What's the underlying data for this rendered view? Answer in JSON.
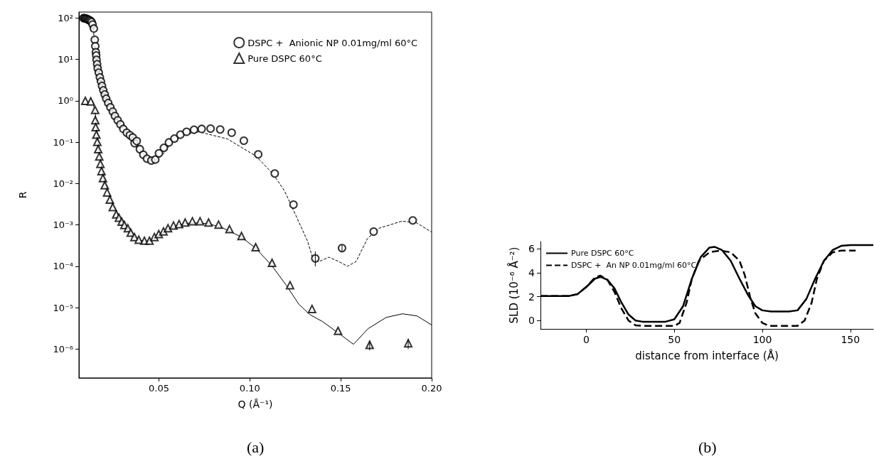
{
  "chart_data": [
    {
      "type": "scatter",
      "xlabel": "Q (Å⁻¹)",
      "ylabel": "R",
      "annotations": [
        "(a)"
      ],
      "log": "y",
      "legend": "top right",
      "grid": false,
      "xlim": [
        0.006,
        0.2
      ],
      "xticks": [
        0.05,
        {
          "value": 0.1,
          "label": "0.10"
        },
        0.15,
        {
          "value": 0.2,
          "label": "0.20"
        }
      ],
      "ylim": [
        2e-07,
        140
      ],
      "yticks": [
        {
          "value": 100,
          "label": "10²"
        },
        {
          "value": 10,
          "label": "10¹"
        },
        {
          "value": 1,
          "label": "10⁰"
        },
        {
          "value": 0.1,
          "label": "10⁻¹"
        },
        {
          "value": 0.01,
          "label": "10⁻²"
        },
        {
          "value": 0.001,
          "label": "10⁻³"
        },
        {
          "value": 0.0001,
          "label": "10⁻⁴"
        },
        {
          "value": 1e-05,
          "label": "10⁻⁵"
        },
        {
          "value": 1e-06,
          "label": "10⁻⁶"
        }
      ],
      "series": [
        {
          "name": "DSPC +  Anionic NP 0.01mg/ml 60°C",
          "color": "#000000",
          "marker": "circle",
          "x": [
            0.0085,
            0.009,
            0.0095,
            0.01,
            0.0105,
            0.011,
            0.0115,
            0.012,
            0.0125,
            0.013,
            0.0135,
            0.0142,
            0.0147,
            0.015,
            0.0153,
            0.0155,
            0.0157,
            0.016,
            0.0163,
            0.0169,
            0.0175,
            0.0181,
            0.0187,
            0.0194,
            0.0202,
            0.021,
            0.0221,
            0.0233,
            0.0246,
            0.0258,
            0.0273,
            0.0288,
            0.0304,
            0.0323,
            0.034,
            0.0356,
            0.0366,
            0.0378,
            0.0395,
            0.0414,
            0.0434,
            0.0458,
            0.048,
            0.05,
            0.0527,
            0.0555,
            0.0585,
            0.0618,
            0.0652,
            0.0693,
            0.0735,
            0.0784,
            0.0837,
            0.09,
            0.0967,
            0.1046,
            0.1137,
            0.124,
            0.136,
            0.1507,
            0.1681,
            0.1896
          ],
          "values": [
            100,
            100,
            98,
            97,
            95,
            92,
            90,
            88,
            85,
            80,
            70,
            56,
            30,
            21,
            15,
            12.5,
            9.8,
            7.7,
            6.1,
            4.8,
            3.7,
            2.95,
            2.3,
            1.8,
            1.43,
            1.13,
            0.89,
            0.7,
            0.55,
            0.43,
            0.34,
            0.27,
            0.21,
            0.17,
            0.148,
            0.13,
            0.095,
            0.107,
            0.068,
            0.05,
            0.04,
            0.036,
            0.038,
            0.054,
            0.073,
            0.099,
            0.122,
            0.152,
            0.179,
            0.2,
            0.21,
            0.213,
            0.203,
            0.17,
            0.109,
            0.051,
            0.0175,
            0.0031,
            0.000155,
            0.000275,
            0.00069,
            0.00129
          ],
          "errors": [
            null,
            null,
            null,
            null,
            null,
            null,
            null,
            null,
            null,
            null,
            null,
            null,
            null,
            null,
            null,
            null,
            null,
            null,
            null,
            null,
            null,
            null,
            null,
            null,
            null,
            null,
            null,
            null,
            null,
            null,
            null,
            null,
            null,
            null,
            null,
            null,
            null,
            null,
            null,
            null,
            null,
            null,
            null,
            null,
            null,
            null,
            null,
            null,
            null,
            null,
            null,
            null,
            null,
            null,
            null,
            null,
            null,
            null,
            [
              0.0001,
              0.00023
            ],
            [
              0.000225,
              0.000325
            ],
            null,
            null
          ]
        },
        {
          "name": "Pure DSPC 60°C",
          "color": "#000000",
          "marker": "triangle",
          "x": [
            0.0095,
            0.0125,
            0.0149,
            0.015,
            0.0152,
            0.0156,
            0.0161,
            0.0166,
            0.0172,
            0.0178,
            0.0184,
            0.0192,
            0.0202,
            0.0215,
            0.023,
            0.0246,
            0.0265,
            0.028,
            0.0295,
            0.031,
            0.0329,
            0.0345,
            0.0365,
            0.0389,
            0.042,
            0.0448,
            0.0475,
            0.0499,
            0.0525,
            0.055,
            0.058,
            0.0611,
            0.0644,
            0.0684,
            0.0726,
            0.0773,
            0.0828,
            0.0888,
            0.0954,
            0.1032,
            0.1122,
            0.1221,
            0.1342,
            0.1485,
            0.1659,
            0.1871
          ],
          "values": [
            1,
            0.97,
            0.6,
            0.34,
            0.23,
            0.152,
            0.102,
            0.068,
            0.045,
            0.03,
            0.02,
            0.0135,
            0.0091,
            0.0061,
            0.0041,
            0.0027,
            0.0018,
            0.0015,
            0.0012,
            0.001,
            0.00083,
            0.00065,
            0.00051,
            0.00044,
            0.000415,
            0.000415,
            0.00051,
            0.0006,
            0.0007,
            0.00083,
            0.00097,
            0.00105,
            0.00114,
            0.00123,
            0.00123,
            0.00114,
            0.00102,
            0.00079,
            0.00054,
            0.00029,
            0.000121,
            3.5e-05,
            9.3e-06,
            2.75e-06,
            1.26e-06,
            1.38e-06
          ],
          "errors": [
            null,
            null,
            null,
            null,
            null,
            null,
            null,
            null,
            null,
            null,
            null,
            null,
            null,
            null,
            null,
            null,
            null,
            null,
            null,
            null,
            null,
            null,
            null,
            null,
            null,
            null,
            null,
            null,
            null,
            null,
            null,
            null,
            null,
            null,
            null,
            null,
            null,
            null,
            null,
            null,
            null,
            null,
            null,
            null,
            [
              9.3e-07,
              1.6e-06
            ],
            [
              1e-06,
              1.75e-06
            ]
          ]
        },
        {
          "type": "line",
          "color": "#000000",
          "marker": "none",
          "line_style": "dashed",
          "x": [
            0.0135,
            0.015,
            0.017,
            0.02,
            0.025,
            0.03,
            0.035,
            0.04,
            0.045,
            0.048,
            0.052,
            0.056,
            0.06,
            0.065,
            0.072,
            0.0877,
            0.1034,
            0.1128,
            0.1191,
            0.1253,
            0.1318,
            0.1349,
            0.138,
            0.1435,
            0.149,
            0.1537,
            0.1584,
            0.1647,
            0.171,
            0.1835,
            0.1914,
            0.2
          ],
          "values": [
            90,
            15,
            4.8,
            1.45,
            0.5,
            0.22,
            0.12,
            0.06,
            0.038,
            0.036,
            0.05,
            0.085,
            0.12,
            0.155,
            0.178,
            0.12,
            0.046,
            0.017,
            0.0066,
            0.0017,
            0.0004,
            0.00014,
            0.00013,
            0.000166,
            0.00013,
            0.0001,
            0.00013,
            0.00047,
            0.00083,
            0.00123,
            0.00114,
            0.00067
          ]
        },
        {
          "type": "line",
          "color": "#000000",
          "marker": "none",
          "line_style": "solid",
          "x": [
            0.0135,
            0.015,
            0.017,
            0.02,
            0.025,
            0.03,
            0.035,
            0.04,
            0.044,
            0.05,
            0.055,
            0.06,
            0.066,
            0.072,
            0.078,
            0.085,
            0.095,
            0.103,
            0.112,
            0.12,
            0.127,
            0.133,
            0.14,
            0.15,
            0.157,
            0.165,
            0.175,
            0.184,
            0.192,
            0.2
          ],
          "values": [
            1.0,
            0.5,
            0.06,
            0.011,
            0.0028,
            0.0011,
            0.00055,
            0.00042,
            0.0004,
            0.00055,
            0.00078,
            0.00098,
            0.0011,
            0.00112,
            0.00105,
            0.00085,
            0.00052,
            0.00028,
            0.000105,
            3.5e-05,
            1.2e-05,
            6.8e-06,
            4.6e-06,
            2.2e-06,
            1.3e-06,
            3.1e-06,
            5.8e-06,
            7.1e-06,
            6.3e-06,
            3.8e-06
          ]
        }
      ]
    },
    {
      "type": "line",
      "xlabel": "distance from interface (Å)",
      "ylabel": "SLD (10⁻⁶ Å⁻²)",
      "annotations": [
        "(b)"
      ],
      "legend": "top left",
      "grid": false,
      "marker": "none",
      "xlim": [
        -26,
        163
      ],
      "xticks": [
        0,
        50,
        100,
        150
      ],
      "ylim": [
        -0.7,
        6.6
      ],
      "yticks": [
        0,
        2,
        4,
        6
      ],
      "series": [
        {
          "name": "Pure DSPC 60°C",
          "color": "#000000",
          "line_style": "solid",
          "x": [
            -26,
            -10,
            -5,
            0,
            5,
            8,
            12,
            16,
            20,
            24,
            28,
            32,
            45,
            50,
            55,
            60,
            65,
            70,
            73,
            77,
            82,
            87,
            92,
            96,
            100,
            105,
            115,
            120,
            125,
            130,
            135,
            140,
            145,
            150,
            163
          ],
          "values": [
            2.05,
            2.05,
            2.2,
            2.8,
            3.5,
            3.65,
            3.4,
            2.7,
            1.5,
            0.5,
            0.0,
            -0.1,
            -0.1,
            0.1,
            1.2,
            3.5,
            5.3,
            6.1,
            6.15,
            5.9,
            5.0,
            3.5,
            2.1,
            1.2,
            0.85,
            0.75,
            0.75,
            0.85,
            1.8,
            3.5,
            5.0,
            5.9,
            6.25,
            6.3,
            6.3
          ]
        },
        {
          "name": "DSPC +  An NP 0.01mg/ml 60°C",
          "color": "#000000",
          "line_style": "dashed",
          "x": [
            -26,
            -10,
            -5,
            0,
            5,
            8,
            12,
            16,
            20,
            24,
            28,
            32,
            50,
            53,
            57,
            60,
            64,
            70,
            76,
            82,
            87,
            90,
            93,
            96,
            100,
            104,
            120,
            124,
            128,
            131,
            135,
            140,
            145,
            153
          ],
          "values": [
            2.05,
            2.05,
            2.2,
            2.8,
            3.6,
            3.75,
            3.4,
            2.4,
            1.0,
            0.0,
            -0.4,
            -0.45,
            -0.45,
            -0.2,
            1.5,
            3.5,
            5.0,
            5.7,
            5.85,
            5.7,
            5.0,
            3.8,
            2.0,
            0.6,
            -0.2,
            -0.45,
            -0.45,
            0.0,
            1.5,
            3.5,
            5.0,
            5.7,
            5.85,
            5.85
          ]
        }
      ]
    }
  ]
}
